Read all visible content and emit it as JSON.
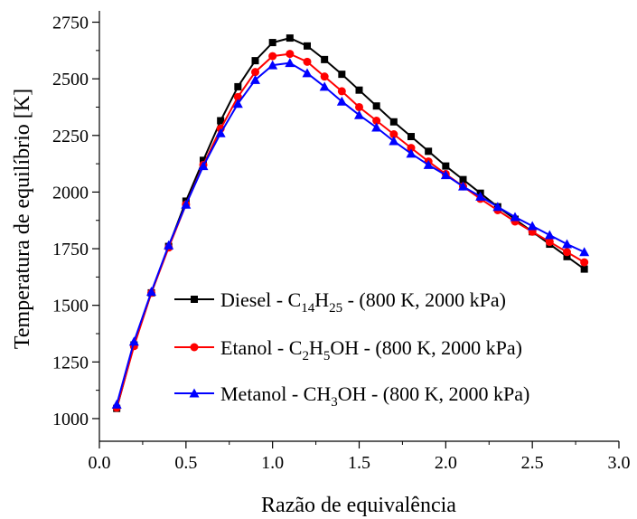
{
  "chart_data": {
    "type": "line",
    "title": "",
    "xlabel": "Razão de equivalência",
    "ylabel": "Temperatura de equilíbrio [K]",
    "xlim": [
      0.0,
      3.0
    ],
    "ylim": [
      900,
      2800
    ],
    "xticks": [
      "0.0",
      "0.5",
      "1.0",
      "1.5",
      "2.0",
      "2.5",
      "3.0"
    ],
    "yticks": [
      "1000",
      "1250",
      "1500",
      "1750",
      "2000",
      "2250",
      "2500",
      "2750"
    ],
    "grid": false,
    "legend_position": "bottom-right",
    "x": [
      0.1,
      0.2,
      0.3,
      0.4,
      0.5,
      0.6,
      0.7,
      0.8,
      0.9,
      1.0,
      1.1,
      1.2,
      1.3,
      1.4,
      1.5,
      1.6,
      1.7,
      1.8,
      1.9,
      2.0,
      2.1,
      2.2,
      2.3,
      2.4,
      2.5,
      2.6,
      2.7,
      2.8
    ],
    "series": [
      {
        "name": "Diesel",
        "legend_parts": [
          {
            "t": "Diesel - C"
          },
          {
            "t": "14",
            "sub": true
          },
          {
            "t": "H"
          },
          {
            "t": "25",
            "sub": true
          },
          {
            "t": " - (800 K, 2000 kPa)"
          }
        ],
        "color": "#000000",
        "marker": "square",
        "values": [
          1045,
          1325,
          1555,
          1760,
          1960,
          2140,
          2315,
          2465,
          2580,
          2660,
          2680,
          2645,
          2585,
          2520,
          2450,
          2380,
          2310,
          2245,
          2180,
          2115,
          2055,
          1995,
          1935,
          1880,
          1825,
          1770,
          1715,
          1660
        ]
      },
      {
        "name": "Etanol",
        "legend_parts": [
          {
            "t": "Etanol - C"
          },
          {
            "t": "2",
            "sub": true
          },
          {
            "t": "H"
          },
          {
            "t": "5",
            "sub": true
          },
          {
            "t": "OH - (800 K, 2000 kPa)"
          }
        ],
        "color": "#ff0000",
        "marker": "circle",
        "values": [
          1048,
          1320,
          1555,
          1755,
          1945,
          2120,
          2280,
          2420,
          2530,
          2600,
          2610,
          2575,
          2510,
          2445,
          2375,
          2315,
          2255,
          2195,
          2135,
          2080,
          2025,
          1970,
          1920,
          1870,
          1825,
          1780,
          1735,
          1690
        ]
      },
      {
        "name": "Metanol",
        "legend_parts": [
          {
            "t": "Metanol - CH"
          },
          {
            "t": "3",
            "sub": true
          },
          {
            "t": "OH - (800 K, 2000 kPa)"
          }
        ],
        "color": "#0000ff",
        "marker": "triangle",
        "values": [
          1062,
          1340,
          1560,
          1765,
          1945,
          2115,
          2260,
          2390,
          2495,
          2560,
          2570,
          2525,
          2465,
          2400,
          2340,
          2285,
          2225,
          2170,
          2120,
          2075,
          2025,
          1980,
          1935,
          1890,
          1850,
          1810,
          1770,
          1735
        ]
      }
    ]
  }
}
